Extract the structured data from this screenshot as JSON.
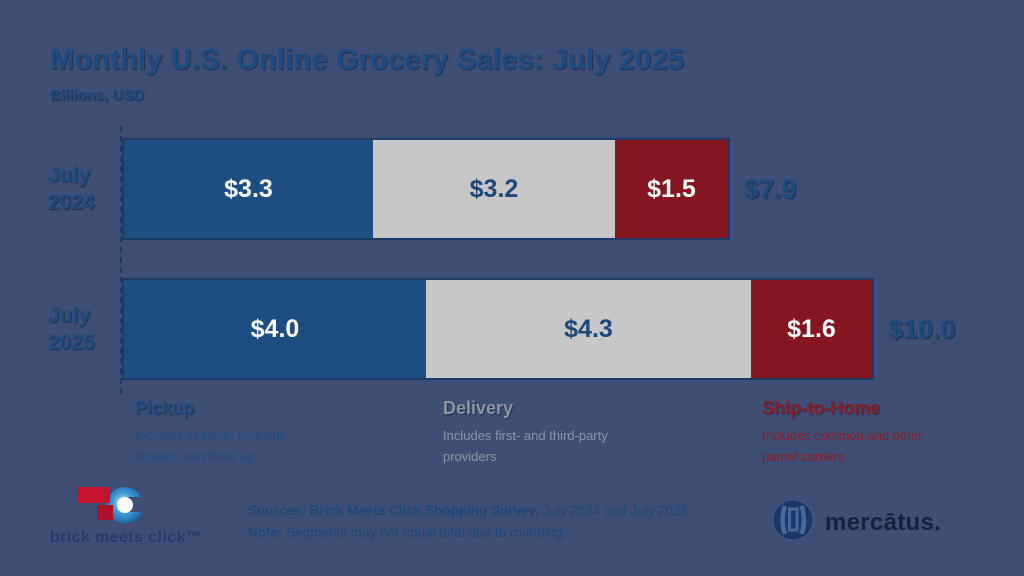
{
  "title": "Monthly U.S. Online Grocery Sales: July 2025",
  "subtitle": "Billions, USD",
  "colors": {
    "background": "#3f4e74",
    "navy_text": "#1d4a7d",
    "pickup_blue": "#1e4d82",
    "delivery_gray": "#c7c7c7",
    "ship_red": "#85161f",
    "bar_border": "#1c3a66"
  },
  "chart_data": {
    "type": "bar",
    "orientation": "horizontal",
    "stacked": true,
    "title": "Monthly U.S. Online Grocery Sales: July 2025",
    "subtitle": "Billions, USD",
    "unit": "USD billions",
    "categories": [
      "July 2024",
      "July 2025"
    ],
    "series": [
      {
        "name": "Pickup",
        "values": [
          3.3,
          4.0
        ],
        "color": "#1e4d82"
      },
      {
        "name": "Delivery",
        "values": [
          3.2,
          4.3
        ],
        "color": "#c7c7c7"
      },
      {
        "name": "Ship-to-Home",
        "values": [
          1.5,
          1.6
        ],
        "color": "#85161f"
      }
    ],
    "totals": [
      7.9,
      10.0
    ],
    "grid": false,
    "legend_position": "bottom"
  },
  "rows": [
    {
      "label": "July\n2024",
      "total": "$7.9",
      "segments": [
        {
          "label": "$3.3",
          "value": 3.3,
          "color": "#1e4d82",
          "text_color": "#ffffff"
        },
        {
          "label": "$3.2",
          "value": 3.2,
          "color": "#c7c7c7",
          "text_color": "#1e4878"
        },
        {
          "label": "$1.5",
          "value": 1.5,
          "color": "#85161f",
          "text_color": "#ffffff"
        }
      ]
    },
    {
      "label": "July\n2025",
      "total": "$10.0",
      "segments": [
        {
          "label": "$4.0",
          "value": 4.0,
          "color": "#1e4d82",
          "text_color": "#ffffff"
        },
        {
          "label": "$4.3",
          "value": 4.3,
          "color": "#c7c7c7",
          "text_color": "#1e4878"
        },
        {
          "label": "$1.6",
          "value": 1.6,
          "color": "#85161f",
          "text_color": "#ffffff"
        }
      ]
    }
  ],
  "legend": [
    {
      "name": "Pickup",
      "desc": "Includes in-store, curbside, lockers, and drive up",
      "color": "#1e4c82"
    },
    {
      "name": "Delivery",
      "desc": "Includes first- and third-party providers",
      "color": "#8f95a0"
    },
    {
      "name": "Ship-to-Home",
      "desc": "Includes common and other parcel carriers",
      "color": "#8e1b26"
    }
  ],
  "footer": {
    "sources_bold": "Sources: Brick Meets Click Shopping Survey,",
    "sources_rest": " July 2024 and July 2025.",
    "note_bold": "Note:",
    "note_rest": " Segments may not equal total due to rounding.",
    "bmc_wordmark": "brick meets click™",
    "mercatus_wordmark": "mercātus."
  }
}
